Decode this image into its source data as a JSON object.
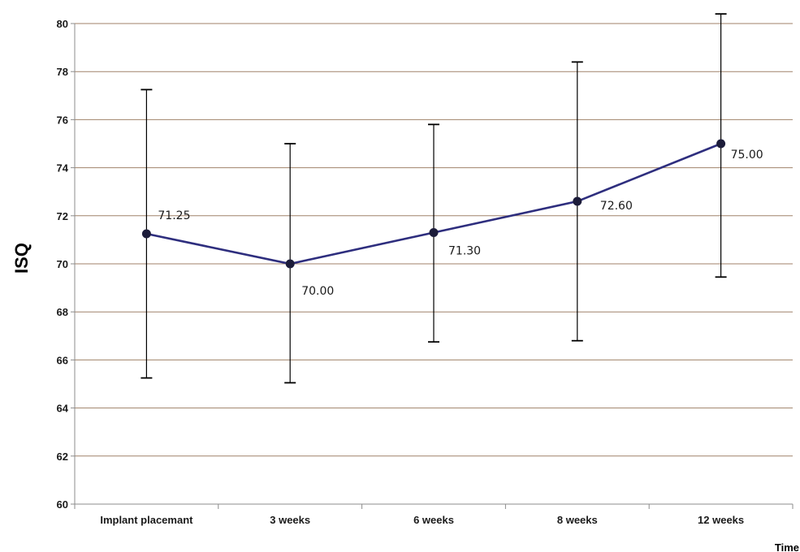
{
  "chart_data": {
    "type": "line",
    "categories": [
      "Implant placemant",
      "3 weeks",
      "6 weeks",
      "8 weeks",
      "12 weeks"
    ],
    "values": [
      71.25,
      70.0,
      71.3,
      72.6,
      75.0
    ],
    "data_labels": [
      "71.25",
      "70.00",
      "71.30",
      "72.60",
      "75.00"
    ],
    "error_upper": [
      77.25,
      75.0,
      75.8,
      78.4,
      80.4
    ],
    "error_lower": [
      65.25,
      65.05,
      66.75,
      66.8,
      69.45
    ],
    "ylim": [
      60,
      80
    ],
    "yticks": [
      "60",
      "62",
      "64",
      "66",
      "68",
      "70",
      "72",
      "74",
      "76",
      "78",
      "80"
    ],
    "ylabel": "ISQ",
    "xlabel": "Time",
    "grid": true,
    "colors": {
      "line": "#2e2e7e",
      "marker": "#1c1c3a",
      "grid": "#a0826a",
      "axis": "#8c8c8c",
      "error_bar": "#000000"
    }
  }
}
